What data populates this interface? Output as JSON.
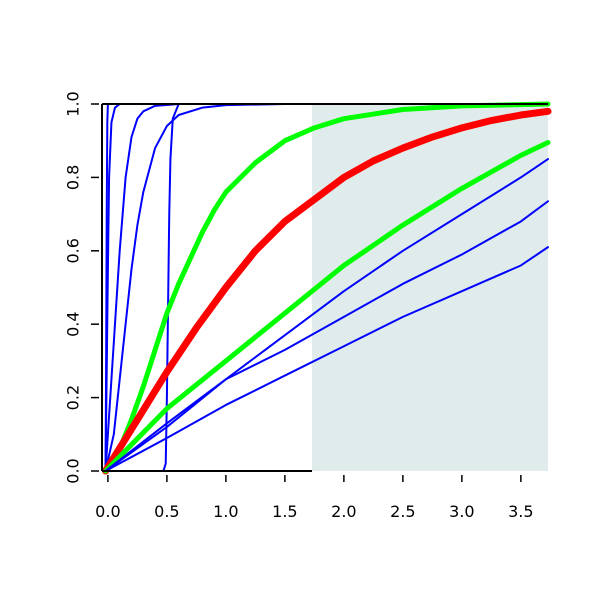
{
  "chart_data": {
    "type": "line",
    "xlim": [
      -0.05,
      3.73
    ],
    "ylim": [
      0,
      1
    ],
    "x_ticks": [
      {
        "value": 0.0,
        "label": "0.0"
      },
      {
        "value": 0.5,
        "label": "0.5"
      },
      {
        "value": 1.0,
        "label": "1.0"
      },
      {
        "value": 1.5,
        "label": "1.5"
      },
      {
        "value": 2.0,
        "label": "2.0"
      },
      {
        "value": 2.5,
        "label": "2.5"
      },
      {
        "value": 3.0,
        "label": "3.0"
      },
      {
        "value": 3.5,
        "label": "3.5"
      }
    ],
    "y_ticks": [
      {
        "value": 0.0,
        "label": "0.0"
      },
      {
        "value": 0.2,
        "label": "0.2"
      },
      {
        "value": 0.4,
        "label": "0.4"
      },
      {
        "value": 0.6,
        "label": "0.6"
      },
      {
        "value": 0.8,
        "label": "0.8"
      },
      {
        "value": 1.0,
        "label": "1.0"
      }
    ],
    "grid": false,
    "shaded_region": {
      "x_from": 1.73,
      "x_to": 3.73,
      "y_from": 0,
      "y_to": 1,
      "color": "#e0eceb"
    },
    "series": [
      {
        "color": "#0000ff",
        "width": "thin",
        "points": [
          [
            -0.02,
            0.0
          ],
          [
            -0.015,
            0.3
          ],
          [
            -0.01,
            0.7
          ],
          [
            -0.005,
            0.95
          ],
          [
            0.0,
            1.0
          ],
          [
            3.73,
            1.0
          ]
        ]
      },
      {
        "color": "#0000ff",
        "width": "thin",
        "points": [
          [
            -0.02,
            0.0
          ],
          [
            0.0,
            0.55
          ],
          [
            0.01,
            0.8
          ],
          [
            0.03,
            0.95
          ],
          [
            0.06,
            0.99
          ],
          [
            0.1,
            1.0
          ],
          [
            3.73,
            1.0
          ]
        ]
      },
      {
        "color": "#0000ff",
        "width": "thin",
        "points": [
          [
            -0.02,
            0.0
          ],
          [
            0.0,
            0.1
          ],
          [
            0.05,
            0.35
          ],
          [
            0.1,
            0.6
          ],
          [
            0.15,
            0.8
          ],
          [
            0.2,
            0.91
          ],
          [
            0.25,
            0.96
          ],
          [
            0.3,
            0.98
          ],
          [
            0.4,
            0.995
          ],
          [
            0.6,
            1.0
          ],
          [
            3.73,
            1.0
          ]
        ]
      },
      {
        "color": "#0000ff",
        "width": "thin",
        "points": [
          [
            -0.02,
            0.0
          ],
          [
            0.05,
            0.1
          ],
          [
            0.1,
            0.25
          ],
          [
            0.15,
            0.4
          ],
          [
            0.2,
            0.55
          ],
          [
            0.25,
            0.67
          ],
          [
            0.3,
            0.76
          ],
          [
            0.4,
            0.88
          ],
          [
            0.5,
            0.94
          ],
          [
            0.6,
            0.97
          ],
          [
            0.8,
            0.99
          ],
          [
            1.0,
            0.997
          ],
          [
            1.5,
            1.0
          ],
          [
            3.73,
            1.0
          ]
        ]
      },
      {
        "color": "#0000ff",
        "width": "thin",
        "points": [
          [
            0.35,
            0.0
          ],
          [
            0.47,
            0.0
          ],
          [
            0.49,
            0.02
          ],
          [
            0.5,
            0.2
          ],
          [
            0.51,
            0.45
          ],
          [
            0.52,
            0.7
          ],
          [
            0.53,
            0.85
          ],
          [
            0.55,
            0.96
          ],
          [
            0.6,
            1.0
          ],
          [
            3.73,
            1.0
          ]
        ]
      },
      {
        "color": "#00ff00",
        "width": "thick",
        "points": [
          [
            -0.02,
            0.0
          ],
          [
            0.1,
            0.06
          ],
          [
            0.2,
            0.14
          ],
          [
            0.3,
            0.23
          ],
          [
            0.4,
            0.33
          ],
          [
            0.5,
            0.43
          ],
          [
            0.6,
            0.51
          ],
          [
            0.7,
            0.58
          ],
          [
            0.8,
            0.65
          ],
          [
            0.9,
            0.71
          ],
          [
            1.0,
            0.76
          ],
          [
            1.25,
            0.84
          ],
          [
            1.5,
            0.9
          ],
          [
            1.75,
            0.935
          ],
          [
            2.0,
            0.96
          ],
          [
            2.5,
            0.985
          ],
          [
            3.0,
            0.995
          ],
          [
            3.73,
            1.0
          ]
        ]
      },
      {
        "color": "#ff0000",
        "width": "thickest",
        "points": [
          [
            -0.02,
            0.0
          ],
          [
            0.25,
            0.14
          ],
          [
            0.5,
            0.27
          ],
          [
            0.75,
            0.39
          ],
          [
            1.0,
            0.5
          ],
          [
            1.25,
            0.6
          ],
          [
            1.5,
            0.68
          ],
          [
            1.75,
            0.74
          ],
          [
            2.0,
            0.8
          ],
          [
            2.25,
            0.845
          ],
          [
            2.5,
            0.88
          ],
          [
            2.75,
            0.91
          ],
          [
            3.0,
            0.935
          ],
          [
            3.25,
            0.955
          ],
          [
            3.5,
            0.97
          ],
          [
            3.73,
            0.98
          ]
        ]
      },
      {
        "color": "#00ff00",
        "width": "thick",
        "points": [
          [
            -0.02,
            0.0
          ],
          [
            0.5,
            0.17
          ],
          [
            1.0,
            0.3
          ],
          [
            1.5,
            0.43
          ],
          [
            2.0,
            0.56
          ],
          [
            2.5,
            0.67
          ],
          [
            3.0,
            0.77
          ],
          [
            3.5,
            0.86
          ],
          [
            3.73,
            0.895
          ]
        ]
      },
      {
        "color": "#0000ff",
        "width": "thin",
        "points": [
          [
            -0.02,
            0.0
          ],
          [
            0.5,
            0.13
          ],
          [
            1.0,
            0.25
          ],
          [
            1.5,
            0.37
          ],
          [
            2.0,
            0.49
          ],
          [
            2.5,
            0.6
          ],
          [
            3.0,
            0.7
          ],
          [
            3.5,
            0.8
          ],
          [
            3.73,
            0.85
          ]
        ]
      },
      {
        "color": "#0000ff",
        "width": "thin",
        "points": [
          [
            -0.02,
            0.0
          ],
          [
            0.5,
            0.12
          ],
          [
            1.0,
            0.25
          ],
          [
            1.5,
            0.33
          ],
          [
            2.0,
            0.42
          ],
          [
            2.5,
            0.51
          ],
          [
            3.0,
            0.59
          ],
          [
            3.5,
            0.68
          ],
          [
            3.73,
            0.735
          ]
        ]
      },
      {
        "color": "#0000ff",
        "width": "thin",
        "points": [
          [
            -0.02,
            0.0
          ],
          [
            0.5,
            0.09
          ],
          [
            1.0,
            0.18
          ],
          [
            1.5,
            0.26
          ],
          [
            2.0,
            0.34
          ],
          [
            2.5,
            0.42
          ],
          [
            3.0,
            0.49
          ],
          [
            3.5,
            0.56
          ],
          [
            3.73,
            0.61
          ]
        ]
      }
    ]
  }
}
